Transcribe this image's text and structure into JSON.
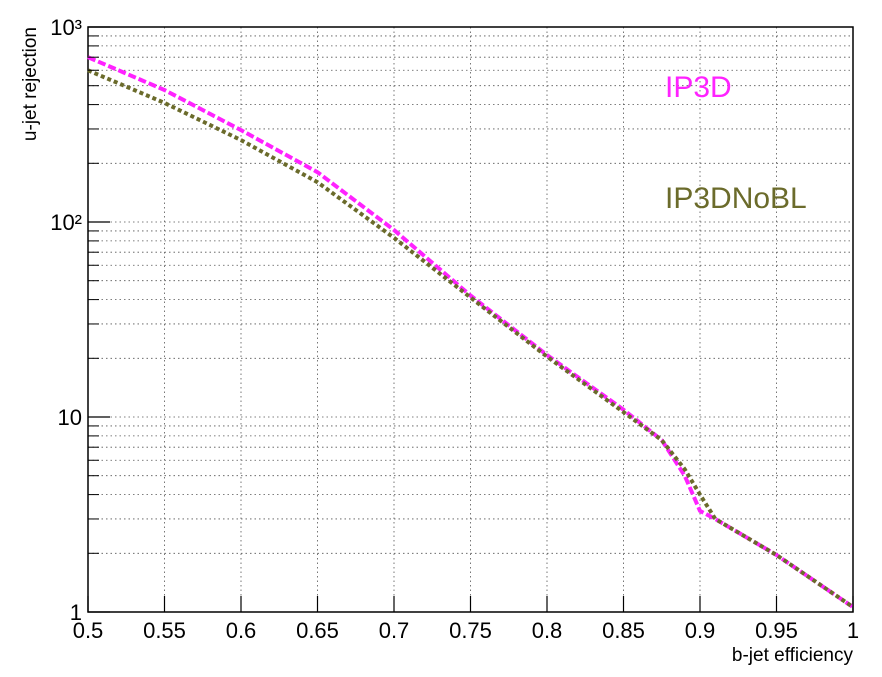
{
  "chart_data": {
    "type": "line",
    "x_label": "b-jet efficiency",
    "y_label": "u-jet rejection",
    "x": [
      0.5,
      0.55,
      0.6,
      0.65,
      0.7,
      0.75,
      0.8,
      0.85,
      0.875,
      0.89,
      0.9,
      0.91,
      0.95,
      1.0
    ],
    "series": [
      {
        "name": "IP3D",
        "color": "#ff22ff",
        "values": [
          700,
          475,
          296,
          180,
          91,
          42,
          20.8,
          10.9,
          7.6,
          5.0,
          3.3,
          3.0,
          1.96,
          1.06
        ]
      },
      {
        "name": "IP3DNoBL",
        "color": "#6b6b2b",
        "values": [
          600,
          408,
          263,
          160,
          83,
          41,
          20.4,
          10.6,
          7.6,
          5.4,
          4.0,
          3.0,
          1.96,
          1.06
        ]
      }
    ],
    "xlim": [
      0.5,
      1
    ],
    "ylim": [
      1,
      1000
    ],
    "log_y": true,
    "grid": true,
    "xticks": [
      0.5,
      0.55,
      0.6,
      0.65,
      0.7,
      0.75,
      0.8,
      0.85,
      0.9,
      0.95,
      1
    ],
    "yticks": [
      1,
      10,
      {
        "value": 100,
        "label": "10²"
      },
      {
        "value": 1000,
        "label": "10³"
      }
    ],
    "y_minor_grid": [
      2,
      3,
      4,
      5,
      6,
      7,
      8,
      9,
      20,
      30,
      40,
      50,
      60,
      70,
      80,
      90,
      200,
      300,
      400,
      500,
      600,
      700,
      800,
      900
    ]
  }
}
